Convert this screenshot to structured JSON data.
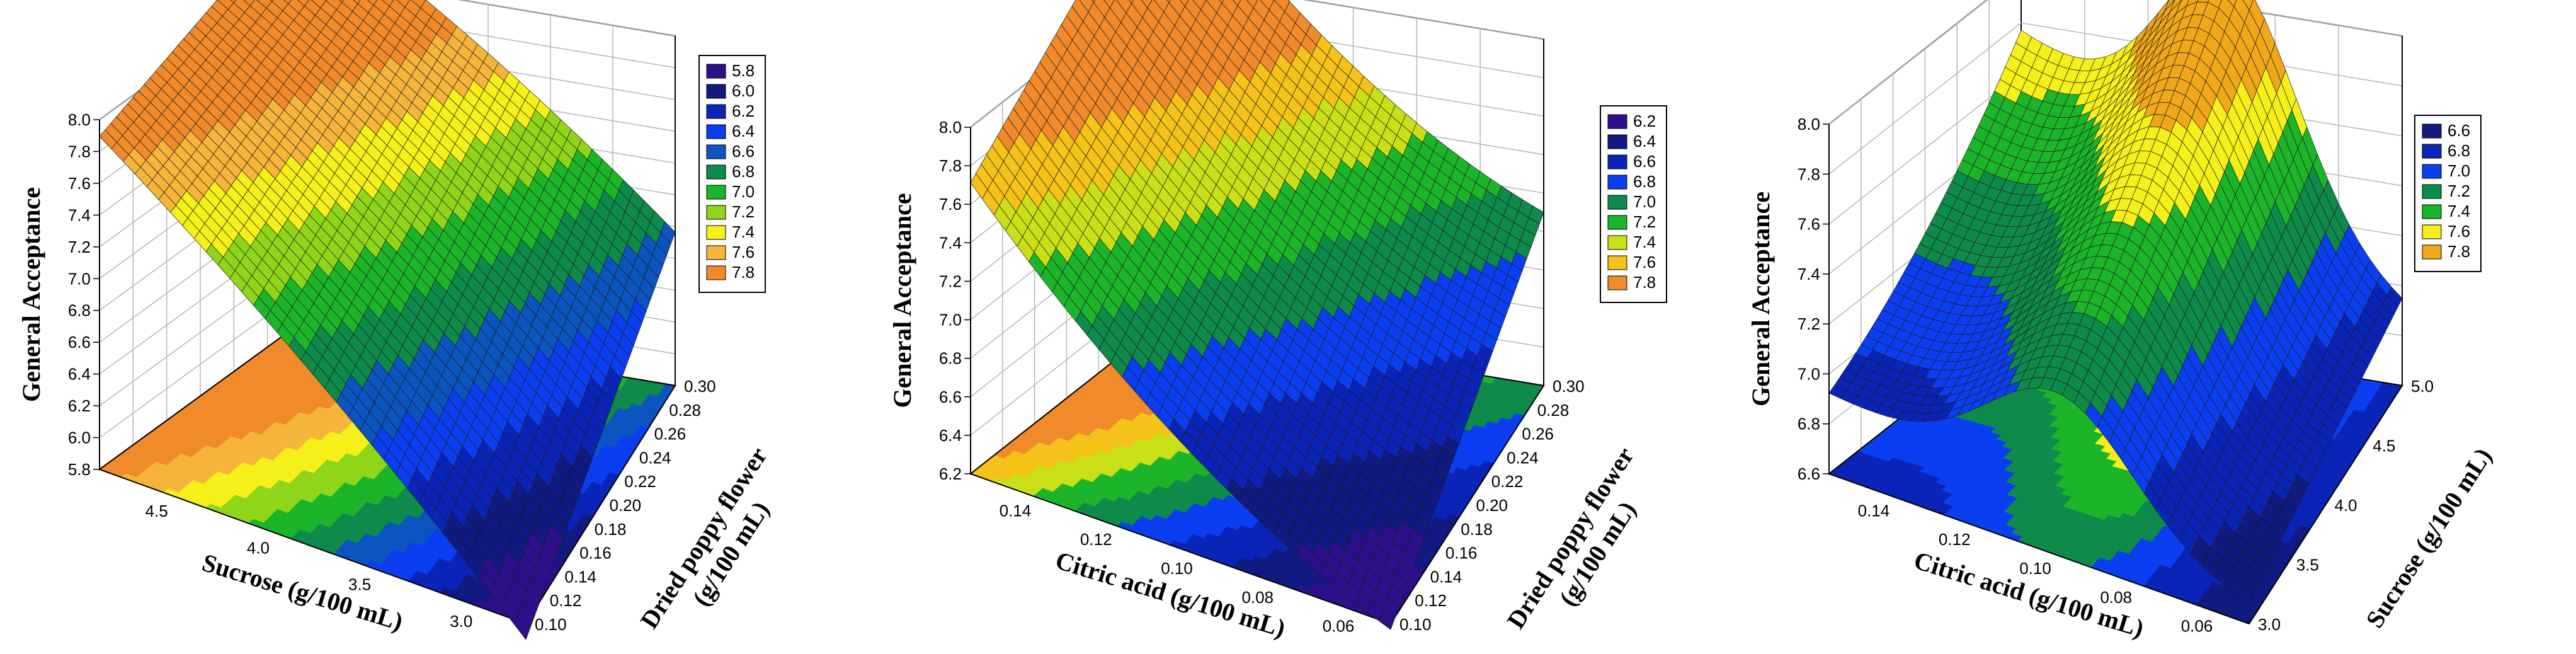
{
  "chart_data": [
    {
      "type": "surface3d",
      "zlabel": "General Acceptance",
      "xlabel": "Sucrose (g/100 mL)",
      "ylabel_line1": "Dried poppy flower",
      "ylabel_line2": "(g/100 mL)",
      "zticks": [
        "5.8",
        "6.0",
        "6.2",
        "6.4",
        "6.6",
        "6.8",
        "7.0",
        "7.2",
        "7.4",
        "7.6",
        "7.8",
        "8.0"
      ],
      "zlim": [
        5.8,
        8.0
      ],
      "xticks": [
        "4.5",
        "4.0",
        "3.5",
        "3.0"
      ],
      "yticks": [
        "0.10",
        "0.12",
        "0.14",
        "0.16",
        "0.18",
        "0.20",
        "0.22",
        "0.24",
        "0.26",
        "0.28",
        "0.30"
      ],
      "legend": [
        "5.8",
        "6.0",
        "6.2",
        "6.4",
        "6.6",
        "6.8",
        "7.0",
        "7.2",
        "7.4",
        "7.6",
        "7.8"
      ],
      "legend_colors": [
        "#2d0f8c",
        "#101a80",
        "#0b24b8",
        "#0a3ef0",
        "#0c54c0",
        "#0e8a4a",
        "#1cb52a",
        "#8fd61a",
        "#f5f01a",
        "#f5b43a",
        "#f08a2a"
      ]
    },
    {
      "type": "surface3d",
      "zlabel": "General Acceptance",
      "xlabel": "Citric acid (g/100 mL)",
      "ylabel_line1": "Dried poppy flower",
      "ylabel_line2": "(g/100 mL)",
      "zticks": [
        "6.2",
        "6.4",
        "6.6",
        "6.8",
        "7.0",
        "7.2",
        "7.4",
        "7.6",
        "7.8",
        "8.0"
      ],
      "zlim": [
        6.2,
        8.0
      ],
      "xticks": [
        "0.14",
        "0.12",
        "0.10",
        "0.08",
        "0.06"
      ],
      "yticks": [
        "0.10",
        "0.12",
        "0.14",
        "0.16",
        "0.18",
        "0.20",
        "0.22",
        "0.24",
        "0.26",
        "0.28",
        "0.30"
      ],
      "legend": [
        "6.2",
        "6.4",
        "6.6",
        "6.8",
        "7.0",
        "7.2",
        "7.4",
        "7.6",
        "7.8"
      ],
      "legend_colors": [
        "#2d0f8c",
        "#101a80",
        "#0b24b8",
        "#0a3ef0",
        "#0e8a4a",
        "#1cb52a",
        "#c9e018",
        "#f5c21a",
        "#f08a2a"
      ]
    },
    {
      "type": "surface3d",
      "zlabel": "General Acceptance",
      "xlabel": "Citric acid (g/100 mL)",
      "ylabel_line1": "Sucrose (g/100 mL)",
      "ylabel_line2": "",
      "zticks": [
        "6.6",
        "6.8",
        "7.0",
        "7.2",
        "7.4",
        "7.6",
        "7.8",
        "8.0"
      ],
      "zlim": [
        6.6,
        8.0
      ],
      "xticks": [
        "0.14",
        "0.12",
        "0.10",
        "0.08",
        "0.06"
      ],
      "yticks": [
        "3.0",
        "3.5",
        "4.0",
        "4.5",
        "5.0"
      ],
      "legend": [
        "6.6",
        "6.8",
        "7.0",
        "7.2",
        "7.4",
        "7.6",
        "7.8"
      ],
      "legend_colors": [
        "#101a80",
        "#0b24b8",
        "#0a3ef0",
        "#0e8a4a",
        "#1cb52a",
        "#f5f01a",
        "#f0a81a"
      ]
    }
  ]
}
